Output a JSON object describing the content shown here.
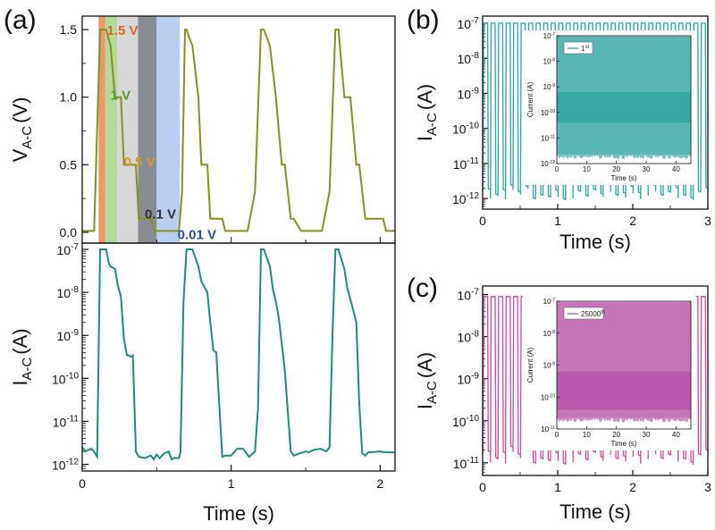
{
  "panel_labels": {
    "a": "(a)",
    "b": "(b)",
    "c": "(c)"
  },
  "colors": {
    "voltage": "#8a8f22",
    "current_a": "#1f8a85",
    "current_b": "#2aa5a0",
    "current_c": "#cf4a9a",
    "inset_b": "#1a9a95",
    "inset_c": "#b040a0"
  },
  "chart_data": [
    {
      "id": "a-top",
      "type": "line",
      "ylabel_main": "V",
      "ylabel_sub": "A-C",
      "ylabel_unit": "(V)",
      "xlim": [
        0,
        2.1
      ],
      "ylim": [
        -0.08,
        1.6
      ],
      "yticks": [
        "0.0",
        "0.5",
        "1.0",
        "1.5"
      ],
      "yticks_values": [
        0,
        0.5,
        1.0,
        1.5
      ],
      "series": [
        {
          "x": [
            0,
            0.08,
            0.12,
            0.16,
            0.19,
            0.22,
            0.26,
            0.28,
            0.36,
            0.38,
            0.46,
            0.48,
            0.65,
            0.67,
            0.69,
            0.7,
            0.74,
            0.78,
            0.8,
            0.84,
            0.86,
            0.88,
            0.94,
            0.96,
            1.0,
            1.04,
            1.11,
            1.16,
            1.2,
            1.22,
            1.26,
            1.3,
            1.34,
            1.36,
            1.4,
            1.42,
            1.47,
            1.5,
            1.55,
            1.61,
            1.66,
            1.7,
            1.72,
            1.76,
            1.8,
            1.84,
            1.86,
            1.9,
            1.92,
            2.02,
            2.04,
            2.1
          ],
          "y": [
            0.01,
            0.01,
            1.5,
            1.5,
            1.38,
            1.0,
            1.0,
            0.5,
            0.5,
            0.1,
            0.1,
            0.01,
            0.01,
            0.3,
            1.5,
            1.5,
            1.38,
            1.0,
            0.5,
            0.5,
            0.1,
            0.1,
            0.1,
            0.01,
            0.01,
            0.01,
            0.01,
            0.3,
            1.5,
            1.5,
            1.38,
            1.0,
            0.5,
            0.5,
            0.1,
            0.1,
            0.01,
            0.01,
            0.01,
            0.01,
            0.3,
            1.5,
            1.5,
            1.0,
            1.0,
            0.5,
            0.5,
            0.1,
            0.1,
            0.1,
            0.01,
            0.01
          ]
        }
      ],
      "bands": [
        {
          "x0": 0.11,
          "x1": 0.155,
          "color": "#e8874f",
          "alpha": 0.85
        },
        {
          "x0": 0.155,
          "x1": 0.235,
          "color": "#9ccb7a",
          "alpha": 0.75
        },
        {
          "x0": 0.235,
          "x1": 0.375,
          "color": "#c9c9c9",
          "alpha": 0.75
        },
        {
          "x0": 0.375,
          "x1": 0.5,
          "color": "#6a6f78",
          "alpha": 0.8
        },
        {
          "x0": 0.5,
          "x1": 0.655,
          "color": "#a9c2ec",
          "alpha": 0.8
        }
      ],
      "annotations": [
        {
          "text": "1.5 V",
          "x": 0.165,
          "y": 1.5,
          "color": "#e0672c"
        },
        {
          "text": "1 V",
          "x": 0.19,
          "y": 1.02,
          "color": "#5a9a2e"
        },
        {
          "text": "0.5 V",
          "x": 0.28,
          "y": 0.53,
          "color": "#d49a2a"
        },
        {
          "text": "0.1 V",
          "x": 0.42,
          "y": 0.14,
          "color": "#333333"
        },
        {
          "text": "0.01 V",
          "x": 0.64,
          "y": -0.01,
          "color": "#2b4fa8"
        }
      ]
    },
    {
      "id": "a-bottom",
      "type": "line",
      "yscale": "log",
      "ylabel_main": "I",
      "ylabel_sub": "A-C",
      "ylabel_unit": "(A)",
      "xlabel": "Time (s)",
      "xlim": [
        0,
        2.1
      ],
      "ylim": [
        7e-13,
        1.4e-07
      ],
      "xticks": [
        "0",
        "1",
        "2"
      ],
      "xticks_values": [
        0,
        1,
        2
      ],
      "yticks_exp": [
        "-7",
        "-8",
        "-9",
        "-10",
        "-11",
        "-12"
      ],
      "yticks_values": [
        1e-07,
        1e-08,
        1e-09,
        1e-10,
        1e-11,
        1e-12
      ],
      "series": [
        {
          "x": [
            0,
            0.02,
            0.06,
            0.08,
            0.1,
            0.12,
            0.16,
            0.18,
            0.19,
            0.22,
            0.24,
            0.26,
            0.28,
            0.3,
            0.33,
            0.34,
            0.36,
            0.38,
            0.42,
            0.46,
            0.48,
            0.5,
            0.52,
            0.55,
            0.58,
            0.6,
            0.62,
            0.65,
            0.66,
            0.68,
            0.7,
            0.74,
            0.78,
            0.8,
            0.84,
            0.86,
            0.88,
            0.9,
            0.92,
            0.94,
            0.96,
            1.0,
            1.04,
            1.08,
            1.12,
            1.16,
            1.18,
            1.2,
            1.22,
            1.26,
            1.28,
            1.3,
            1.32,
            1.36,
            1.4,
            1.42,
            1.46,
            1.5,
            1.52,
            1.56,
            1.6,
            1.64,
            1.66,
            1.68,
            1.7,
            1.72,
            1.76,
            1.78,
            1.8,
            1.84,
            1.86,
            1.88,
            1.9,
            1.92,
            2.0,
            2.04,
            2.1
          ],
          "y": [
            2.5e-12,
            2e-12,
            2.3e-12,
            2e-12,
            1.5e-12,
            1e-07,
            1e-07,
            4.5e-08,
            4e-08,
            3.5e-08,
            1.4e-08,
            8e-09,
            8e-10,
            3.5e-10,
            3.2e-10,
            3.4e-10,
            2e-12,
            1.5e-12,
            1.4e-12,
            1.6e-12,
            1.3e-12,
            1.7e-12,
            1.4e-12,
            1.8e-12,
            2e-12,
            1.3e-12,
            1.4e-12,
            1.4e-12,
            2e-12,
            6e-09,
            1e-07,
            1e-07,
            4e-08,
            1.8e-08,
            1e-08,
            2e-09,
            4.5e-10,
            4e-10,
            2.5e-11,
            1.5e-12,
            1.6e-12,
            1.6e-12,
            2.3e-12,
            2.3e-12,
            1.5e-12,
            2e-12,
            2e-11,
            1e-07,
            1e-07,
            4e-08,
            1.2e-08,
            6e-09,
            2.5e-09,
            1.5e-10,
            2e-12,
            1.6e-12,
            1.8e-12,
            2e-12,
            1.9e-12,
            2.2e-12,
            2.3e-12,
            2e-12,
            2.5e-12,
            1e-09,
            1e-07,
            1e-07,
            3.5e-08,
            1.2e-08,
            7e-09,
            2e-09,
            2.5e-11,
            1.8e-12,
            1.6e-12,
            1.9e-12,
            2e-12,
            1.9e-12,
            1.9e-12
          ]
        }
      ]
    },
    {
      "id": "b",
      "type": "line",
      "yscale": "log",
      "ylabel_main": "I",
      "ylabel_sub": "A-C",
      "ylabel_unit": "(A)",
      "xlabel": "Time (s)",
      "xlim": [
        0,
        3
      ],
      "ylim": [
        5e-13,
        1.6e-07
      ],
      "xticks": [
        "0",
        "1",
        "2",
        "3"
      ],
      "xticks_values": [
        0,
        1,
        2,
        3
      ],
      "yticks_exp": [
        "-7",
        "-8",
        "-9",
        "-10",
        "-11",
        "-12"
      ],
      "yticks_values": [
        1e-07,
        1e-08,
        1e-09,
        1e-10,
        1e-11,
        1e-12
      ],
      "pulses": 30,
      "high": 1e-07,
      "low": 1.5e-12,
      "inset": {
        "type": "area",
        "ylabel": "Current (A)",
        "xlabel": "Time (s)",
        "xlim": [
          0,
          45
        ],
        "ylim": [
          1e-12,
          1e-07
        ],
        "xticks": [
          "0",
          "10",
          "20",
          "30",
          "40"
        ],
        "xticks_values": [
          0,
          10,
          20,
          30,
          40
        ],
        "yticks_exp": [
          "-7",
          "-8",
          "-9",
          "-10",
          "-11",
          "-12"
        ],
        "legend": "1",
        "legend_sup": "st"
      }
    },
    {
      "id": "c",
      "type": "line",
      "yscale": "log",
      "ylabel_main": "I",
      "ylabel_sub": "A-C",
      "ylabel_unit": "(A)",
      "xlabel": "Time (s)",
      "xlim": [
        0,
        3
      ],
      "ylim": [
        5e-12,
        1.6e-07
      ],
      "xticks": [
        "0",
        "1",
        "2",
        "3"
      ],
      "xticks_values": [
        0,
        1,
        2,
        3
      ],
      "yticks_exp": [
        "-7",
        "-8",
        "-9",
        "-10",
        "-11"
      ],
      "yticks_values": [
        1e-07,
        1e-08,
        1e-09,
        1e-10,
        1e-11
      ],
      "pulses": 30,
      "high": 9e-08,
      "low": 1.5e-11,
      "inset": {
        "type": "area",
        "ylabel": "Current (A)",
        "xlabel": "Time (s)",
        "xlim": [
          0,
          45
        ],
        "ylim": [
          1e-11,
          1e-07
        ],
        "xticks": [
          "0",
          "10",
          "20",
          "30",
          "40"
        ],
        "xticks_values": [
          0,
          10,
          20,
          30,
          40
        ],
        "yticks_exp": [
          "-7",
          "-8",
          "-9",
          "-10",
          "-11"
        ],
        "legend": "25000",
        "legend_sup": "th"
      }
    }
  ]
}
